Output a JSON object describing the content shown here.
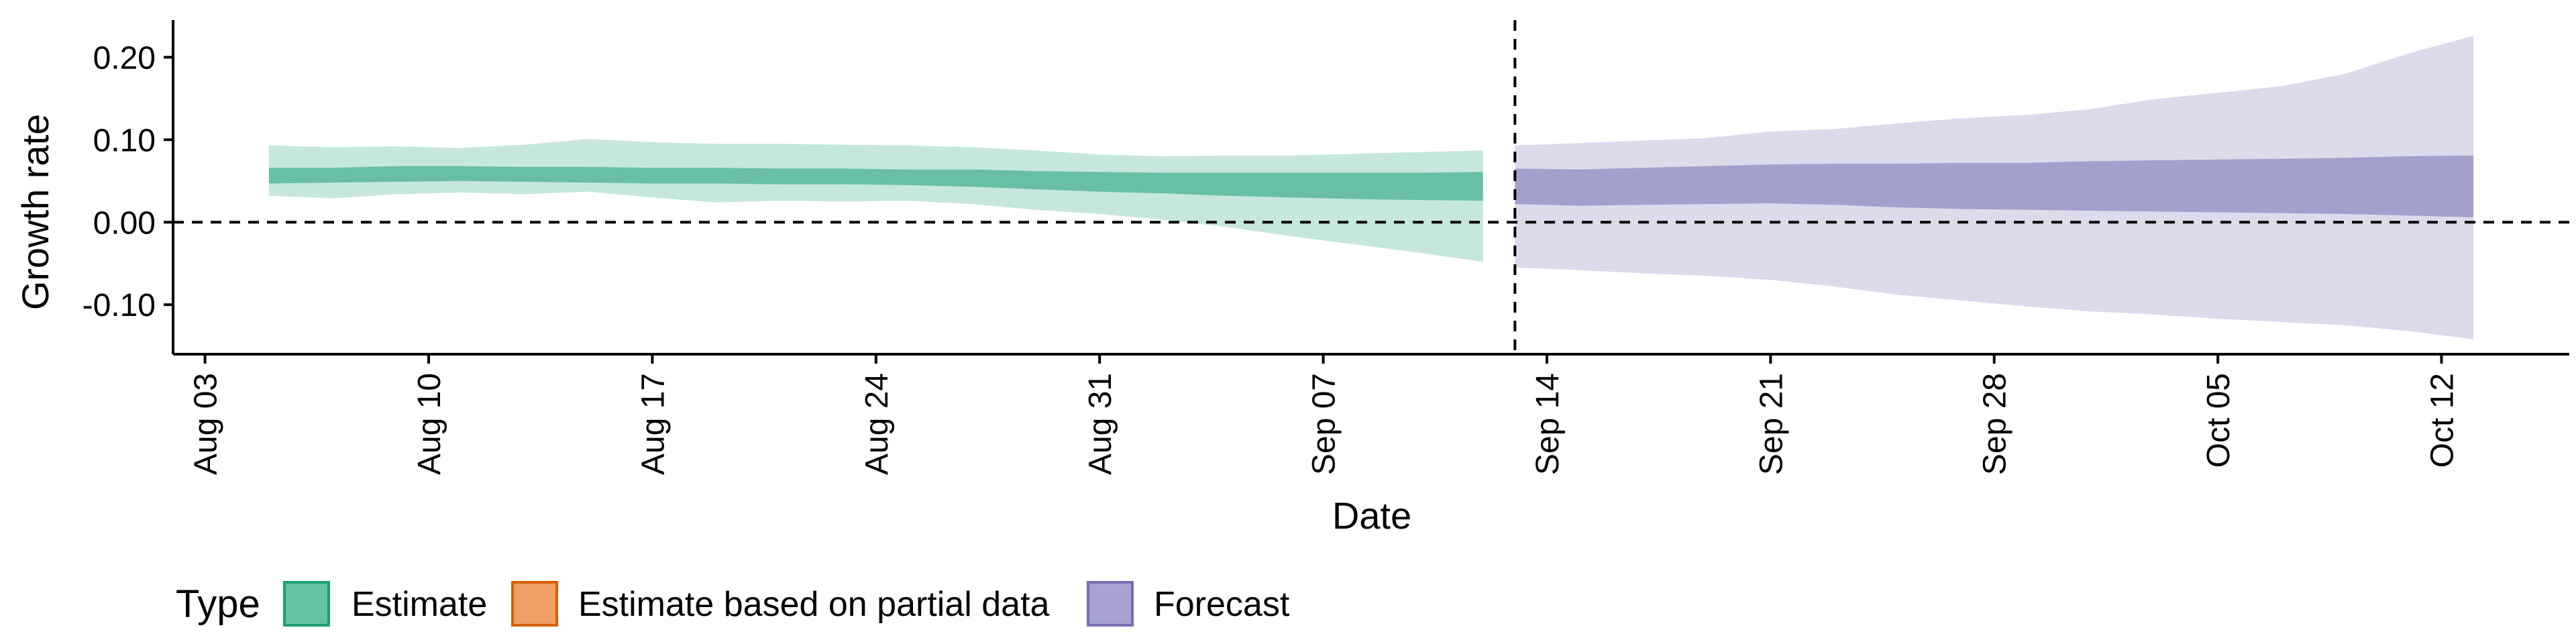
{
  "chart_data": {
    "type": "area",
    "title": "",
    "xlabel": "Date",
    "ylabel": "Growth rate",
    "x_ticks": [
      "2020-08-03",
      "2020-08-10",
      "2020-08-17",
      "2020-08-24",
      "2020-08-31",
      "2020-09-07",
      "2020-09-14",
      "2020-09-21",
      "2020-09-28",
      "2020-10-05",
      "2020-10-12"
    ],
    "x_tick_labels": [
      "Aug 03",
      "Aug 10",
      "Aug 17",
      "Aug 24",
      "Aug 31",
      "Sep 07",
      "Sep 14",
      "Sep 21",
      "Sep 28",
      "Oct 05",
      "Oct 12"
    ],
    "y_ticks": [
      -0.1,
      0.0,
      0.1,
      0.2
    ],
    "y_tick_labels": [
      "-0.10",
      "0.00",
      "0.10",
      "0.20"
    ],
    "ylim": [
      -0.16,
      0.245
    ],
    "xlim": [
      "2020-08-02",
      "2020-10-16"
    ],
    "reference_lines": {
      "horizontal_y": 0.0,
      "vertical_x": "2020-09-13",
      "style": "dashed"
    },
    "grid": false,
    "legend_position": "bottom-left",
    "legend": {
      "title": "Type",
      "entries": [
        {
          "label": "Estimate",
          "fill": "#66c2a5",
          "stroke": "#1b9e77"
        },
        {
          "label": "Estimate based on partial data",
          "fill": "#f0a066",
          "stroke": "#d95f02"
        },
        {
          "label": "Forecast",
          "fill": "#a7a2d2",
          "stroke": "#7570b3"
        }
      ]
    },
    "series": [
      {
        "name": "Estimate",
        "color": "#1b9e77",
        "x": [
          "2020-08-05",
          "2020-08-07",
          "2020-08-09",
          "2020-08-11",
          "2020-08-13",
          "2020-08-15",
          "2020-08-17",
          "2020-08-19",
          "2020-08-21",
          "2020-08-23",
          "2020-08-25",
          "2020-08-27",
          "2020-08-29",
          "2020-08-31",
          "2020-09-02",
          "2020-09-04",
          "2020-09-06",
          "2020-09-08",
          "2020-09-10",
          "2020-09-12"
        ],
        "outer_lower": [
          0.032,
          0.029,
          0.034,
          0.036,
          0.034,
          0.037,
          0.03,
          0.024,
          0.026,
          0.025,
          0.026,
          0.022,
          0.015,
          0.01,
          0.003,
          -0.006,
          -0.017,
          -0.027,
          -0.037,
          -0.048
        ],
        "outer_upper": [
          0.093,
          0.091,
          0.092,
          0.09,
          0.094,
          0.101,
          0.097,
          0.095,
          0.095,
          0.094,
          0.093,
          0.091,
          0.087,
          0.082,
          0.08,
          0.081,
          0.081,
          0.083,
          0.085,
          0.087
        ],
        "inner_lower": [
          0.047,
          0.048,
          0.049,
          0.05,
          0.049,
          0.048,
          0.047,
          0.047,
          0.046,
          0.046,
          0.045,
          0.043,
          0.04,
          0.037,
          0.035,
          0.032,
          0.03,
          0.028,
          0.027,
          0.026
        ],
        "inner_upper": [
          0.066,
          0.066,
          0.068,
          0.068,
          0.067,
          0.067,
          0.066,
          0.066,
          0.065,
          0.065,
          0.064,
          0.064,
          0.062,
          0.061,
          0.06,
          0.06,
          0.06,
          0.06,
          0.06,
          0.061
        ]
      },
      {
        "name": "Forecast",
        "color": "#7570b3",
        "x": [
          "2020-09-13",
          "2020-09-15",
          "2020-09-17",
          "2020-09-19",
          "2020-09-21",
          "2020-09-23",
          "2020-09-25",
          "2020-09-27",
          "2020-09-29",
          "2020-10-01",
          "2020-10-03",
          "2020-10-05",
          "2020-10-07",
          "2020-10-09",
          "2020-10-11",
          "2020-10-13"
        ],
        "outer_lower": [
          -0.055,
          -0.058,
          -0.062,
          -0.065,
          -0.07,
          -0.078,
          -0.088,
          -0.095,
          -0.102,
          -0.108,
          -0.112,
          -0.117,
          -0.121,
          -0.125,
          -0.132,
          -0.142
        ],
        "outer_upper": [
          0.093,
          0.096,
          0.099,
          0.102,
          0.11,
          0.113,
          0.12,
          0.126,
          0.13,
          0.137,
          0.149,
          0.157,
          0.165,
          0.18,
          0.205,
          0.226
        ],
        "inner_lower": [
          0.022,
          0.02,
          0.021,
          0.022,
          0.023,
          0.021,
          0.018,
          0.016,
          0.015,
          0.014,
          0.013,
          0.012,
          0.011,
          0.01,
          0.008,
          0.006
        ],
        "inner_upper": [
          0.065,
          0.064,
          0.066,
          0.068,
          0.07,
          0.071,
          0.071,
          0.072,
          0.072,
          0.074,
          0.075,
          0.076,
          0.077,
          0.078,
          0.08,
          0.081
        ]
      }
    ]
  }
}
